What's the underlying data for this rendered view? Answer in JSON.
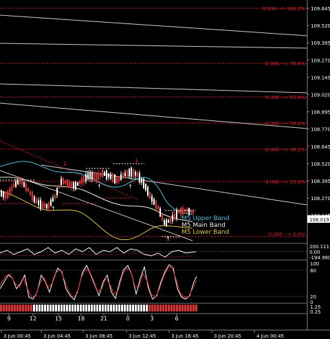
{
  "price_axis": {
    "labels": [
      "109.645",
      "109.520",
      "109.395",
      "109.270",
      "109.145",
      "109.020",
      "108.895",
      "108.770",
      "108.645",
      "108.520",
      "108.395",
      "108.270",
      "108.145",
      "108.019",
      "107.895"
    ],
    "current_price": "108.019"
  },
  "fib_levels": [
    {
      "label": "0.000 --> 100.0%"
    },
    {
      "label": "0.000 --> 76.4%"
    },
    {
      "label": "0.000 --> 61.8%"
    },
    {
      "label": "0.000 --> 50.0%"
    },
    {
      "label": "0.000 --> 38.2%"
    },
    {
      "label": "0.000 --> 23.6%"
    },
    {
      "label": "0.000 --> 0.0%"
    }
  ],
  "band_legend": {
    "upper": "M5 Upper Band",
    "main": "M5 Main Band",
    "lower": "M5 Lower Band"
  },
  "indicator1_axis": [
    "200.1111",
    "0.00",
    "-194.9605"
  ],
  "indicator2_axis": [
    "100",
    "80",
    "20",
    "0"
  ],
  "indicator3_axis": [
    "1.25",
    "0.25"
  ],
  "hour_labels": [
    "9",
    "12",
    "15",
    "18",
    "21",
    "0",
    "3",
    "6"
  ],
  "time_labels": [
    "3 Jun 00:45",
    "3 Jun 04:45",
    "3 Jun 08:45",
    "3 Jun 12:45",
    "3 Jun 16:45",
    "3 Jun 20:45",
    "4 Jun 00:45"
  ],
  "colors": {
    "background": "#000000",
    "grid_dotted": "#555555",
    "fib_red": "#e02020",
    "upper_band": "#4fc3e0",
    "main_band": "#f0f0e0",
    "lower_band": "#e6c84a",
    "bull_candle": "#ffffff",
    "bear_candle": "#e03030",
    "osc_line": "#ffffff",
    "stoch_red": "#e03030"
  }
}
